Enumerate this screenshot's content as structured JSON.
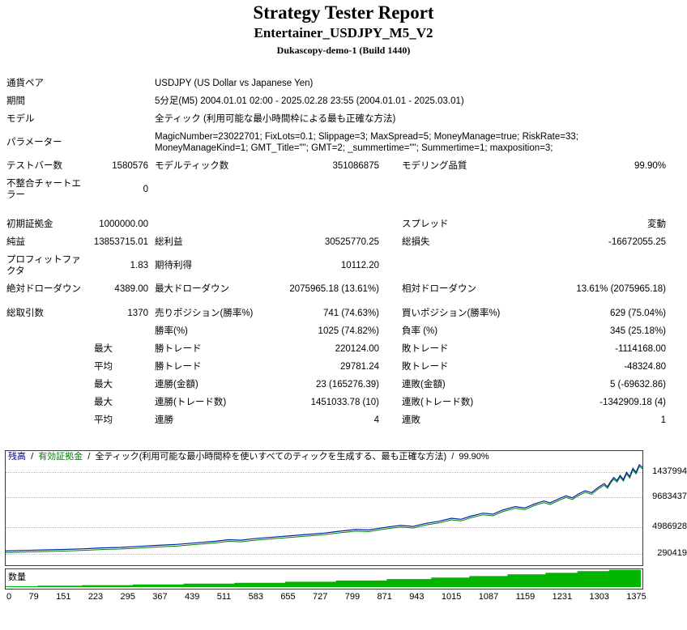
{
  "header": {
    "title": "Strategy Tester Report",
    "subtitle": "Entertainer_USDJPY_M5_V2",
    "build": "Dukascopy-demo-1 (Build 1440)"
  },
  "table": {
    "rows": [
      {
        "cells": [
          {
            "t": "通貨ペア"
          },
          {
            "t": ""
          },
          {
            "t": "USDJPY (US Dollar vs Japanese Yen)",
            "s": 4
          }
        ]
      },
      {
        "cells": [
          {
            "t": "期間"
          },
          {
            "t": ""
          },
          {
            "t": "5分足(M5) 2004.01.01 02:00 - 2025.02.28 23:55 (2004.01.01 - 2025.03.01)",
            "s": 4
          }
        ]
      },
      {
        "cells": [
          {
            "t": "モデル"
          },
          {
            "t": ""
          },
          {
            "t": "全ティック (利用可能な最小時間枠による最も正確な方法)",
            "s": 4
          }
        ]
      },
      {
        "cells": [
          {
            "t": "パラメーター"
          },
          {
            "t": ""
          },
          {
            "t": "MagicNumber=23022701; FixLots=0.1; Slippage=3; MaxSpread=5; MoneyManage=true; RiskRate=33; MoneyManageKind=1; GMT_Title=\"\"; GMT=2; _summertime=\"\"; Summertime=1; maxposition=3;",
            "s": 4
          }
        ]
      },
      {
        "cells": [
          {
            "t": "テストバー数"
          },
          {
            "t": "1580576",
            "a": "r"
          },
          {
            "t": "モデルティック数"
          },
          {
            "t": "351086875",
            "a": "r"
          },
          {
            "t": "モデリング品質"
          },
          {
            "t": "99.90%",
            "a": "r"
          }
        ]
      },
      {
        "cells": [
          {
            "t": "不整合チャートエラー"
          },
          {
            "t": "0",
            "a": "r"
          },
          {
            "t": "",
            "s": 4
          }
        ]
      },
      {
        "spacer": 14
      },
      {
        "cells": [
          {
            "t": "初期証拠金"
          },
          {
            "t": "1000000.00",
            "a": "r"
          },
          {
            "t": ""
          },
          {
            "t": ""
          },
          {
            "t": "スプレッド"
          },
          {
            "t": "変動",
            "a": "r"
          }
        ]
      },
      {
        "cells": [
          {
            "t": "純益"
          },
          {
            "t": "13853715.01",
            "a": "r"
          },
          {
            "t": "総利益"
          },
          {
            "t": "30525770.25",
            "a": "r"
          },
          {
            "t": "総損失"
          },
          {
            "t": "-16672055.25",
            "a": "r"
          }
        ]
      },
      {
        "cells": [
          {
            "t": "プロフィットファクタ"
          },
          {
            "t": "1.83",
            "a": "r"
          },
          {
            "t": "期待利得"
          },
          {
            "t": "10112.20",
            "a": "r"
          },
          {
            "t": ""
          },
          {
            "t": ""
          }
        ]
      },
      {
        "cells": [
          {
            "t": "絶対ドローダウン"
          },
          {
            "t": "4389.00",
            "a": "r"
          },
          {
            "t": "最大ドローダウン"
          },
          {
            "t": "2075965.18 (13.61%)",
            "a": "r"
          },
          {
            "t": "相対ドローダウン"
          },
          {
            "t": "13.61% (2075965.18)",
            "a": "r"
          }
        ]
      },
      {
        "spacer": 8
      },
      {
        "cells": [
          {
            "t": "総取引数"
          },
          {
            "t": "1370",
            "a": "r"
          },
          {
            "t": "売りポジション(勝率%)"
          },
          {
            "t": "741 (74.63%)",
            "a": "r"
          },
          {
            "t": "買いポジション(勝率%)"
          },
          {
            "t": "629 (75.04%)",
            "a": "r"
          }
        ]
      },
      {
        "cells": [
          {
            "t": ""
          },
          {
            "t": ""
          },
          {
            "t": "勝率(%)"
          },
          {
            "t": "1025 (74.82%)",
            "a": "r"
          },
          {
            "t": "負率 (%)"
          },
          {
            "t": "345 (25.18%)",
            "a": "r"
          }
        ]
      },
      {
        "cells": [
          {
            "t": ""
          },
          {
            "t": "最大",
            "a": "p"
          },
          {
            "t": "勝トレード"
          },
          {
            "t": "220124.00",
            "a": "r"
          },
          {
            "t": "敗トレード"
          },
          {
            "t": "-1114168.00",
            "a": "r"
          }
        ]
      },
      {
        "cells": [
          {
            "t": ""
          },
          {
            "t": "平均",
            "a": "p"
          },
          {
            "t": "勝トレード"
          },
          {
            "t": "29781.24",
            "a": "r"
          },
          {
            "t": "敗トレード"
          },
          {
            "t": "-48324.80",
            "a": "r"
          }
        ]
      },
      {
        "cells": [
          {
            "t": ""
          },
          {
            "t": "最大",
            "a": "p"
          },
          {
            "t": "連勝(金額)"
          },
          {
            "t": "23 (165276.39)",
            "a": "r"
          },
          {
            "t": "連敗(金額)"
          },
          {
            "t": "5 (-69632.86)",
            "a": "r"
          }
        ]
      },
      {
        "cells": [
          {
            "t": ""
          },
          {
            "t": "最大",
            "a": "p"
          },
          {
            "t": "連勝(トレード数)"
          },
          {
            "t": "1451033.78 (10)",
            "a": "r"
          },
          {
            "t": "連敗(トレード数)"
          },
          {
            "t": "-1342909.18 (4)",
            "a": "r"
          }
        ]
      },
      {
        "cells": [
          {
            "t": ""
          },
          {
            "t": "平均",
            "a": "p"
          },
          {
            "t": "連勝"
          },
          {
            "t": "4",
            "a": "r"
          },
          {
            "t": "連敗"
          },
          {
            "t": "1",
            "a": "r"
          }
        ]
      }
    ]
  },
  "chart": {
    "type": "line",
    "legend": {
      "balance": "残高",
      "equity": "有効証拠金",
      "model": "全ティック(利用可能な最小時間枠を使いすべてのティックを生成する、最も正確な方法)",
      "quality": "99.90%",
      "sep": "/"
    },
    "y_axis_labels": [
      "1437994",
      "9683437",
      "4986928",
      "290419"
    ],
    "x_axis_labels": [
      "0",
      "79",
      "151",
      "223",
      "295",
      "367",
      "439",
      "511",
      "583",
      "655",
      "727",
      "799",
      "871",
      "943",
      "1015",
      "1087",
      "1159",
      "1231",
      "1303",
      "1375"
    ],
    "volume_label": "数量",
    "colors": {
      "balance": "#0022aa",
      "equity": "#008000",
      "volume": "#00b400"
    },
    "balance_points": [
      [
        0,
        0.14
      ],
      [
        0.03,
        0.145
      ],
      [
        0.06,
        0.15
      ],
      [
        0.09,
        0.155
      ],
      [
        0.12,
        0.16
      ],
      [
        0.15,
        0.17
      ],
      [
        0.18,
        0.175
      ],
      [
        0.21,
        0.185
      ],
      [
        0.24,
        0.195
      ],
      [
        0.27,
        0.205
      ],
      [
        0.3,
        0.22
      ],
      [
        0.33,
        0.235
      ],
      [
        0.35,
        0.25
      ],
      [
        0.37,
        0.245
      ],
      [
        0.39,
        0.26
      ],
      [
        0.42,
        0.275
      ],
      [
        0.45,
        0.29
      ],
      [
        0.48,
        0.305
      ],
      [
        0.5,
        0.315
      ],
      [
        0.52,
        0.33
      ],
      [
        0.55,
        0.35
      ],
      [
        0.57,
        0.345
      ],
      [
        0.6,
        0.375
      ],
      [
        0.62,
        0.39
      ],
      [
        0.64,
        0.38
      ],
      [
        0.66,
        0.41
      ],
      [
        0.68,
        0.43
      ],
      [
        0.7,
        0.46
      ],
      [
        0.715,
        0.45
      ],
      [
        0.73,
        0.48
      ],
      [
        0.75,
        0.51
      ],
      [
        0.765,
        0.5
      ],
      [
        0.78,
        0.54
      ],
      [
        0.8,
        0.575
      ],
      [
        0.815,
        0.56
      ],
      [
        0.83,
        0.6
      ],
      [
        0.845,
        0.63
      ],
      [
        0.855,
        0.61
      ],
      [
        0.87,
        0.655
      ],
      [
        0.88,
        0.68
      ],
      [
        0.89,
        0.66
      ],
      [
        0.9,
        0.7
      ],
      [
        0.91,
        0.73
      ],
      [
        0.92,
        0.71
      ],
      [
        0.93,
        0.76
      ],
      [
        0.94,
        0.8
      ],
      [
        0.945,
        0.77
      ],
      [
        0.95,
        0.82
      ],
      [
        0.955,
        0.86
      ],
      [
        0.96,
        0.83
      ],
      [
        0.965,
        0.88
      ],
      [
        0.97,
        0.84
      ],
      [
        0.975,
        0.91
      ],
      [
        0.98,
        0.87
      ],
      [
        0.985,
        0.95
      ],
      [
        0.99,
        0.91
      ],
      [
        0.995,
        0.985
      ],
      [
        1,
        0.96
      ]
    ],
    "volume_steps": [
      [
        0.05,
        0.05
      ],
      [
        0.12,
        0.08
      ],
      [
        0.2,
        0.11
      ],
      [
        0.28,
        0.15
      ],
      [
        0.36,
        0.19
      ],
      [
        0.44,
        0.24
      ],
      [
        0.52,
        0.3
      ],
      [
        0.6,
        0.37
      ],
      [
        0.67,
        0.45
      ],
      [
        0.73,
        0.53
      ],
      [
        0.79,
        0.62
      ],
      [
        0.85,
        0.72
      ],
      [
        0.9,
        0.8
      ],
      [
        0.95,
        0.9
      ],
      [
        1,
        0.97
      ]
    ]
  }
}
